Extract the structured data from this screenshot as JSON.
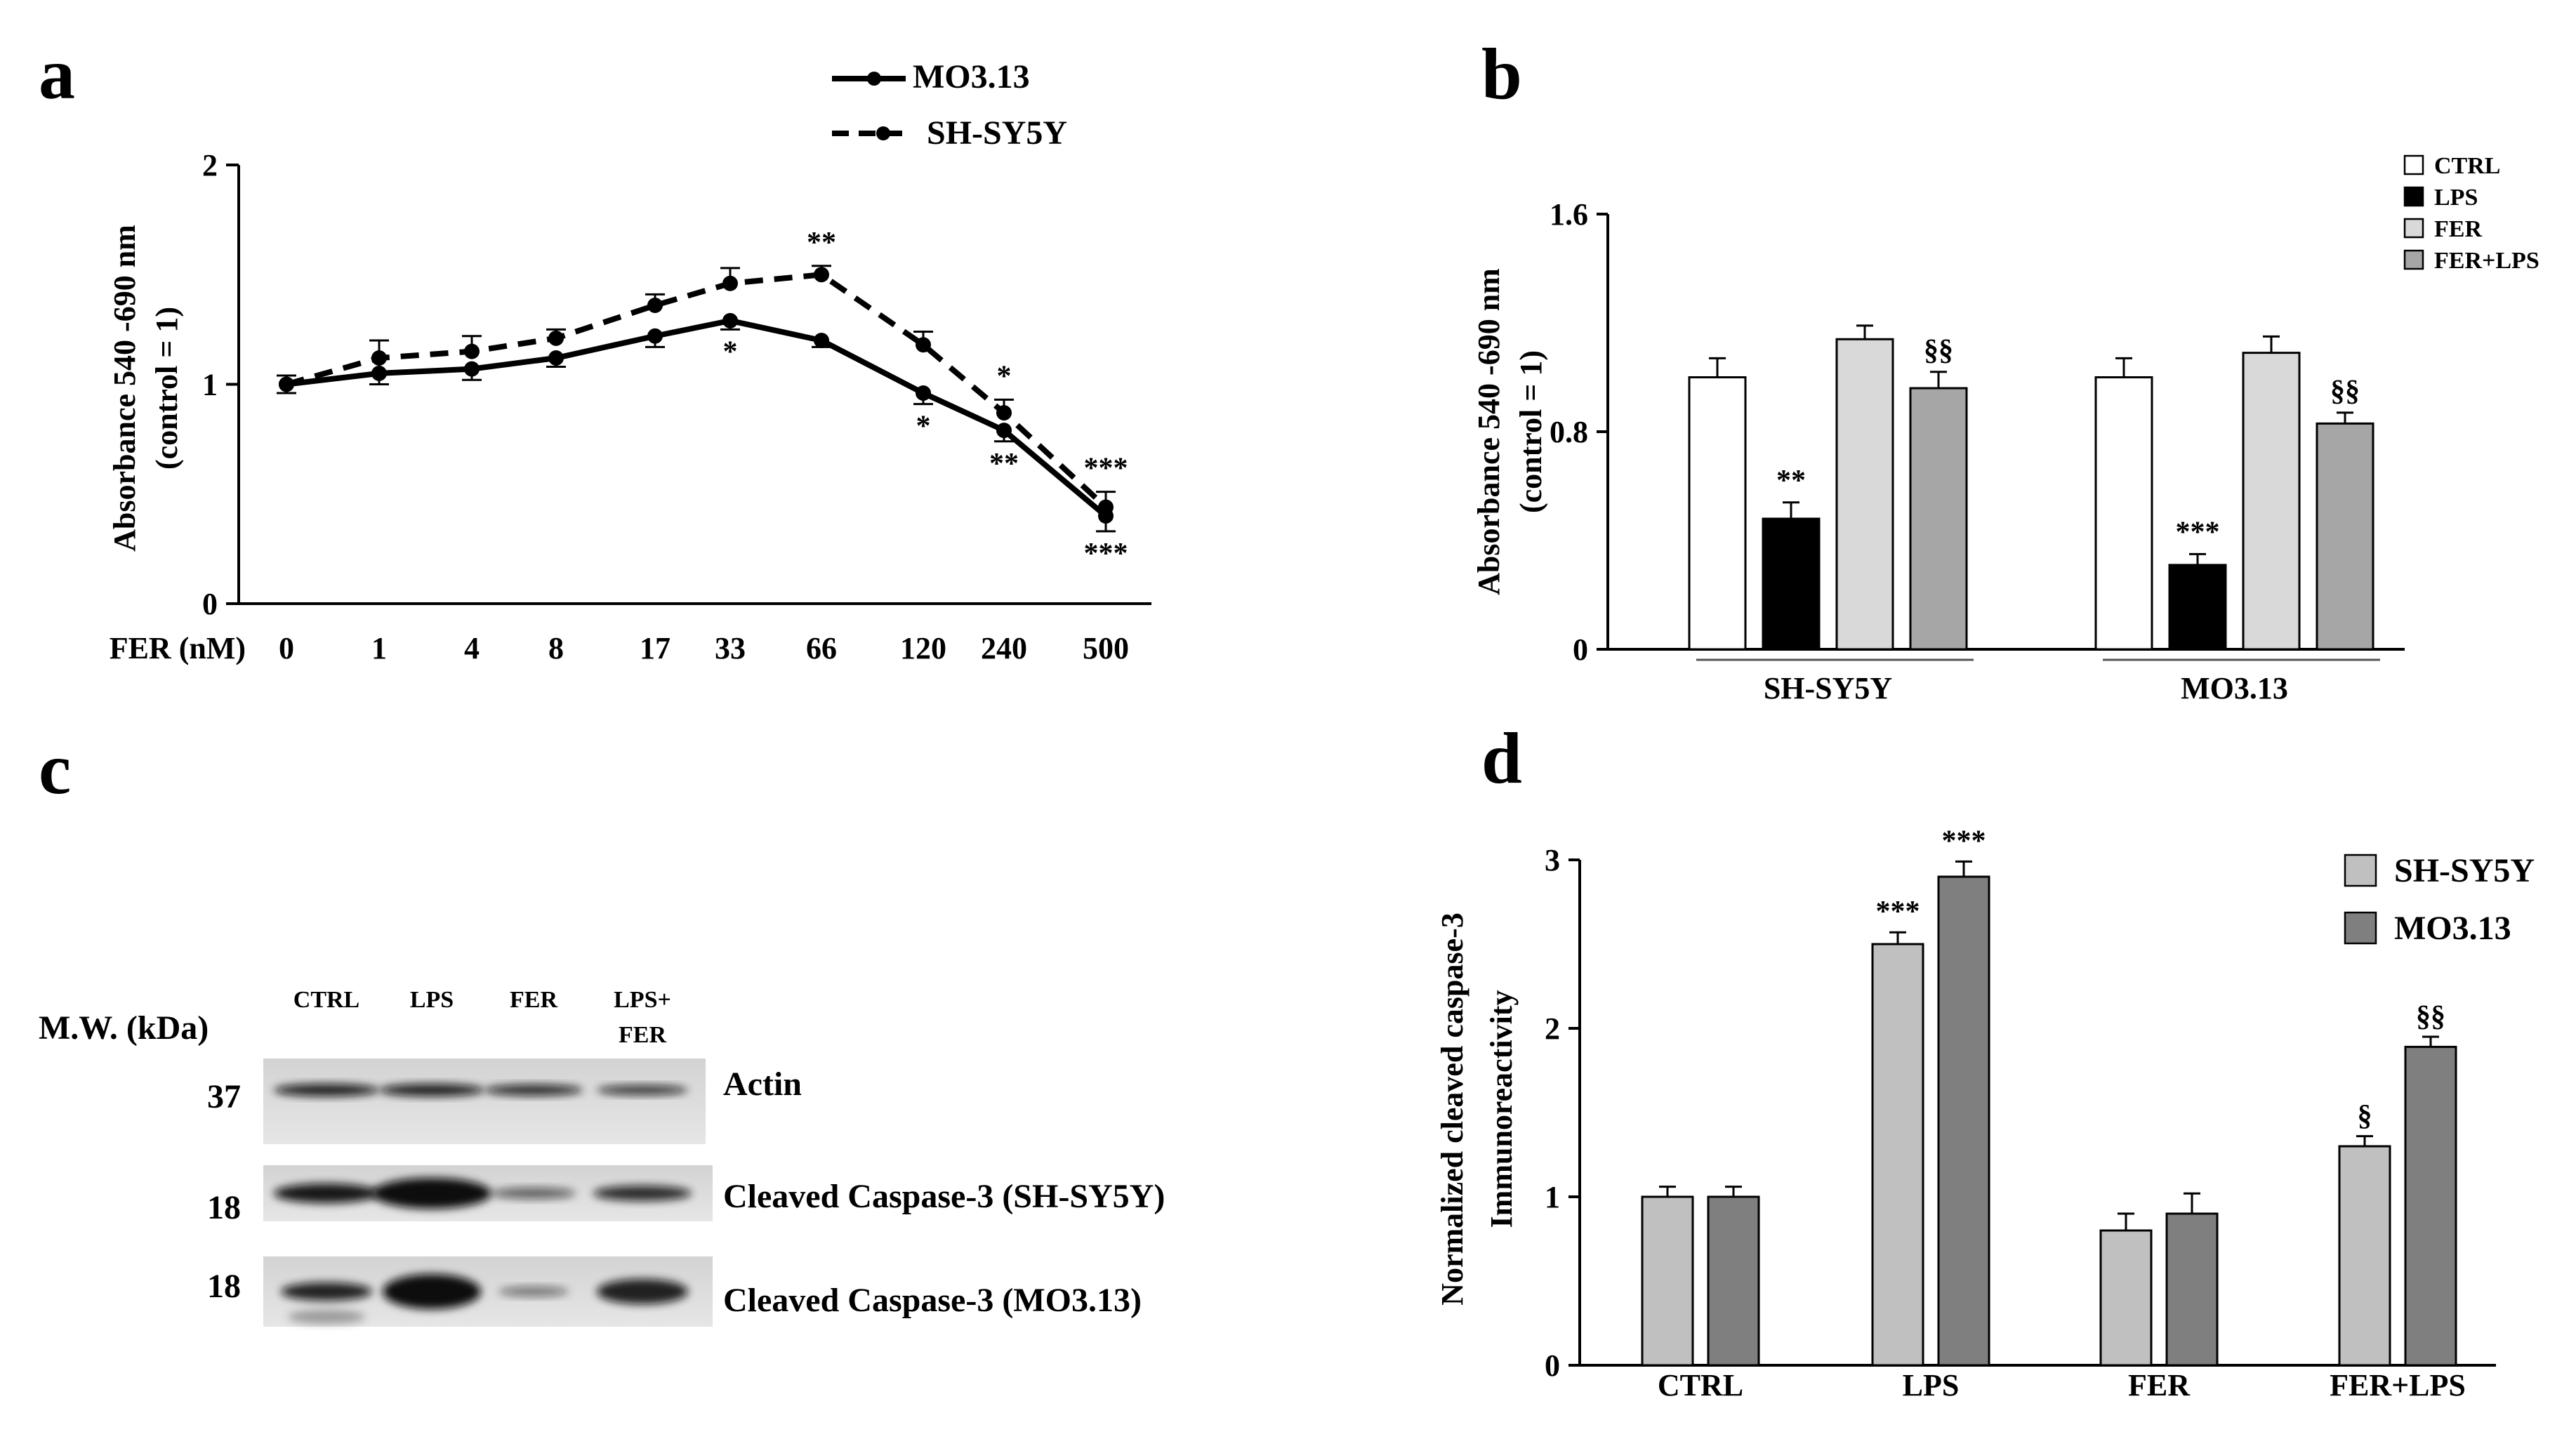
{
  "panels": {
    "a": "a",
    "b": "b",
    "c": "c",
    "d": "d"
  },
  "chart_data": [
    {
      "panel": "a",
      "type": "line",
      "title": "",
      "xlabel": "FER (nM)",
      "ylabel_lines": [
        "Absorbance 540 -690 nm",
        "(control = 1)"
      ],
      "categories": [
        "0",
        "1",
        "4",
        "8",
        "17",
        "33",
        "66",
        "120",
        "240",
        "500"
      ],
      "ylim": [
        0,
        2
      ],
      "yticks": [
        "0",
        "1",
        "2"
      ],
      "legend_position": "top-right",
      "series": [
        {
          "name": "MO3.13",
          "style": "solid",
          "values": [
            1.0,
            1.05,
            1.07,
            1.12,
            1.22,
            1.29,
            1.2,
            0.96,
            0.79,
            0.4
          ],
          "errors": [
            0.04,
            0.05,
            0.05,
            0.04,
            0.05,
            0.04,
            0.03,
            0.05,
            0.05,
            0.07
          ],
          "annotations": [
            "",
            "",
            "",
            "",
            "",
            "*",
            "",
            "*",
            "**",
            "***"
          ]
        },
        {
          "name": "SH-SY5Y",
          "style": "dashed",
          "values": [
            1.0,
            1.12,
            1.15,
            1.21,
            1.36,
            1.46,
            1.5,
            1.18,
            0.87,
            0.44
          ],
          "errors": [
            0.04,
            0.08,
            0.07,
            0.04,
            0.05,
            0.07,
            0.04,
            0.06,
            0.06,
            0.07
          ],
          "annotations": [
            "",
            "",
            "",
            "",
            "",
            "",
            "**",
            "",
            "*",
            "***"
          ]
        }
      ]
    },
    {
      "panel": "b",
      "type": "bar",
      "title": "",
      "ylabel_lines": [
        "Absorbance 540 -690 nm",
        "(control = 1)"
      ],
      "ylim": [
        0,
        1.6
      ],
      "yticks": [
        "0",
        "0.8",
        "1.6"
      ],
      "groups": [
        "SH-SY5Y",
        "MO3.13"
      ],
      "legend_position": "top-right",
      "series": [
        {
          "name": "CTRL",
          "color": "#ffffff",
          "values": [
            1.0,
            1.0
          ],
          "errors": [
            0.07,
            0.07
          ],
          "annotations": [
            "",
            ""
          ]
        },
        {
          "name": "LPS",
          "color": "#000000",
          "values": [
            0.48,
            0.31
          ],
          "errors": [
            0.06,
            0.04
          ],
          "annotations": [
            "**",
            "***"
          ]
        },
        {
          "name": "FER",
          "color": "#d9d9d9",
          "values": [
            1.14,
            1.09
          ],
          "errors": [
            0.05,
            0.06
          ],
          "annotations": [
            "",
            ""
          ]
        },
        {
          "name": "FER+LPS",
          "color": "#a6a6a6",
          "values": [
            0.96,
            0.83
          ],
          "errors": [
            0.06,
            0.04
          ],
          "annotations": [
            "§§",
            "§§"
          ]
        }
      ]
    },
    {
      "panel": "d",
      "type": "bar",
      "title": "",
      "ylabel_lines": [
        "Normalized  cleaved caspase-3",
        "Immunoreactivity"
      ],
      "ylim": [
        0,
        3
      ],
      "yticks": [
        "0",
        "1",
        "2",
        "3"
      ],
      "categories": [
        "CTRL",
        "LPS",
        "FER",
        "FER+LPS"
      ],
      "legend_position": "top-right",
      "series": [
        {
          "name": "SH-SY5Y",
          "color": "#c0c0c0",
          "values": [
            1.0,
            2.5,
            0.8,
            1.3
          ],
          "errors": [
            0.06,
            0.07,
            0.1,
            0.06
          ],
          "annotations": [
            "",
            "***",
            "",
            "§"
          ]
        },
        {
          "name": "MO3.13",
          "color": "#7f7f7f",
          "values": [
            1.0,
            2.9,
            0.9,
            1.89
          ],
          "errors": [
            0.06,
            0.09,
            0.12,
            0.06
          ],
          "annotations": [
            "",
            "***",
            "",
            "§§"
          ]
        }
      ]
    }
  ],
  "western_blot": {
    "mw_header": "M.W.  (kDa)",
    "lanes": [
      "CTRL",
      "LPS",
      "FER",
      "LPS+\nFER"
    ],
    "rows": [
      {
        "mw": "37",
        "label": "Actin"
      },
      {
        "mw": "18",
        "label": "Cleaved Caspase-3 (SH-SY5Y)"
      },
      {
        "mw": "18",
        "label": "Cleaved Caspase-3 (MO3.13)"
      }
    ]
  }
}
